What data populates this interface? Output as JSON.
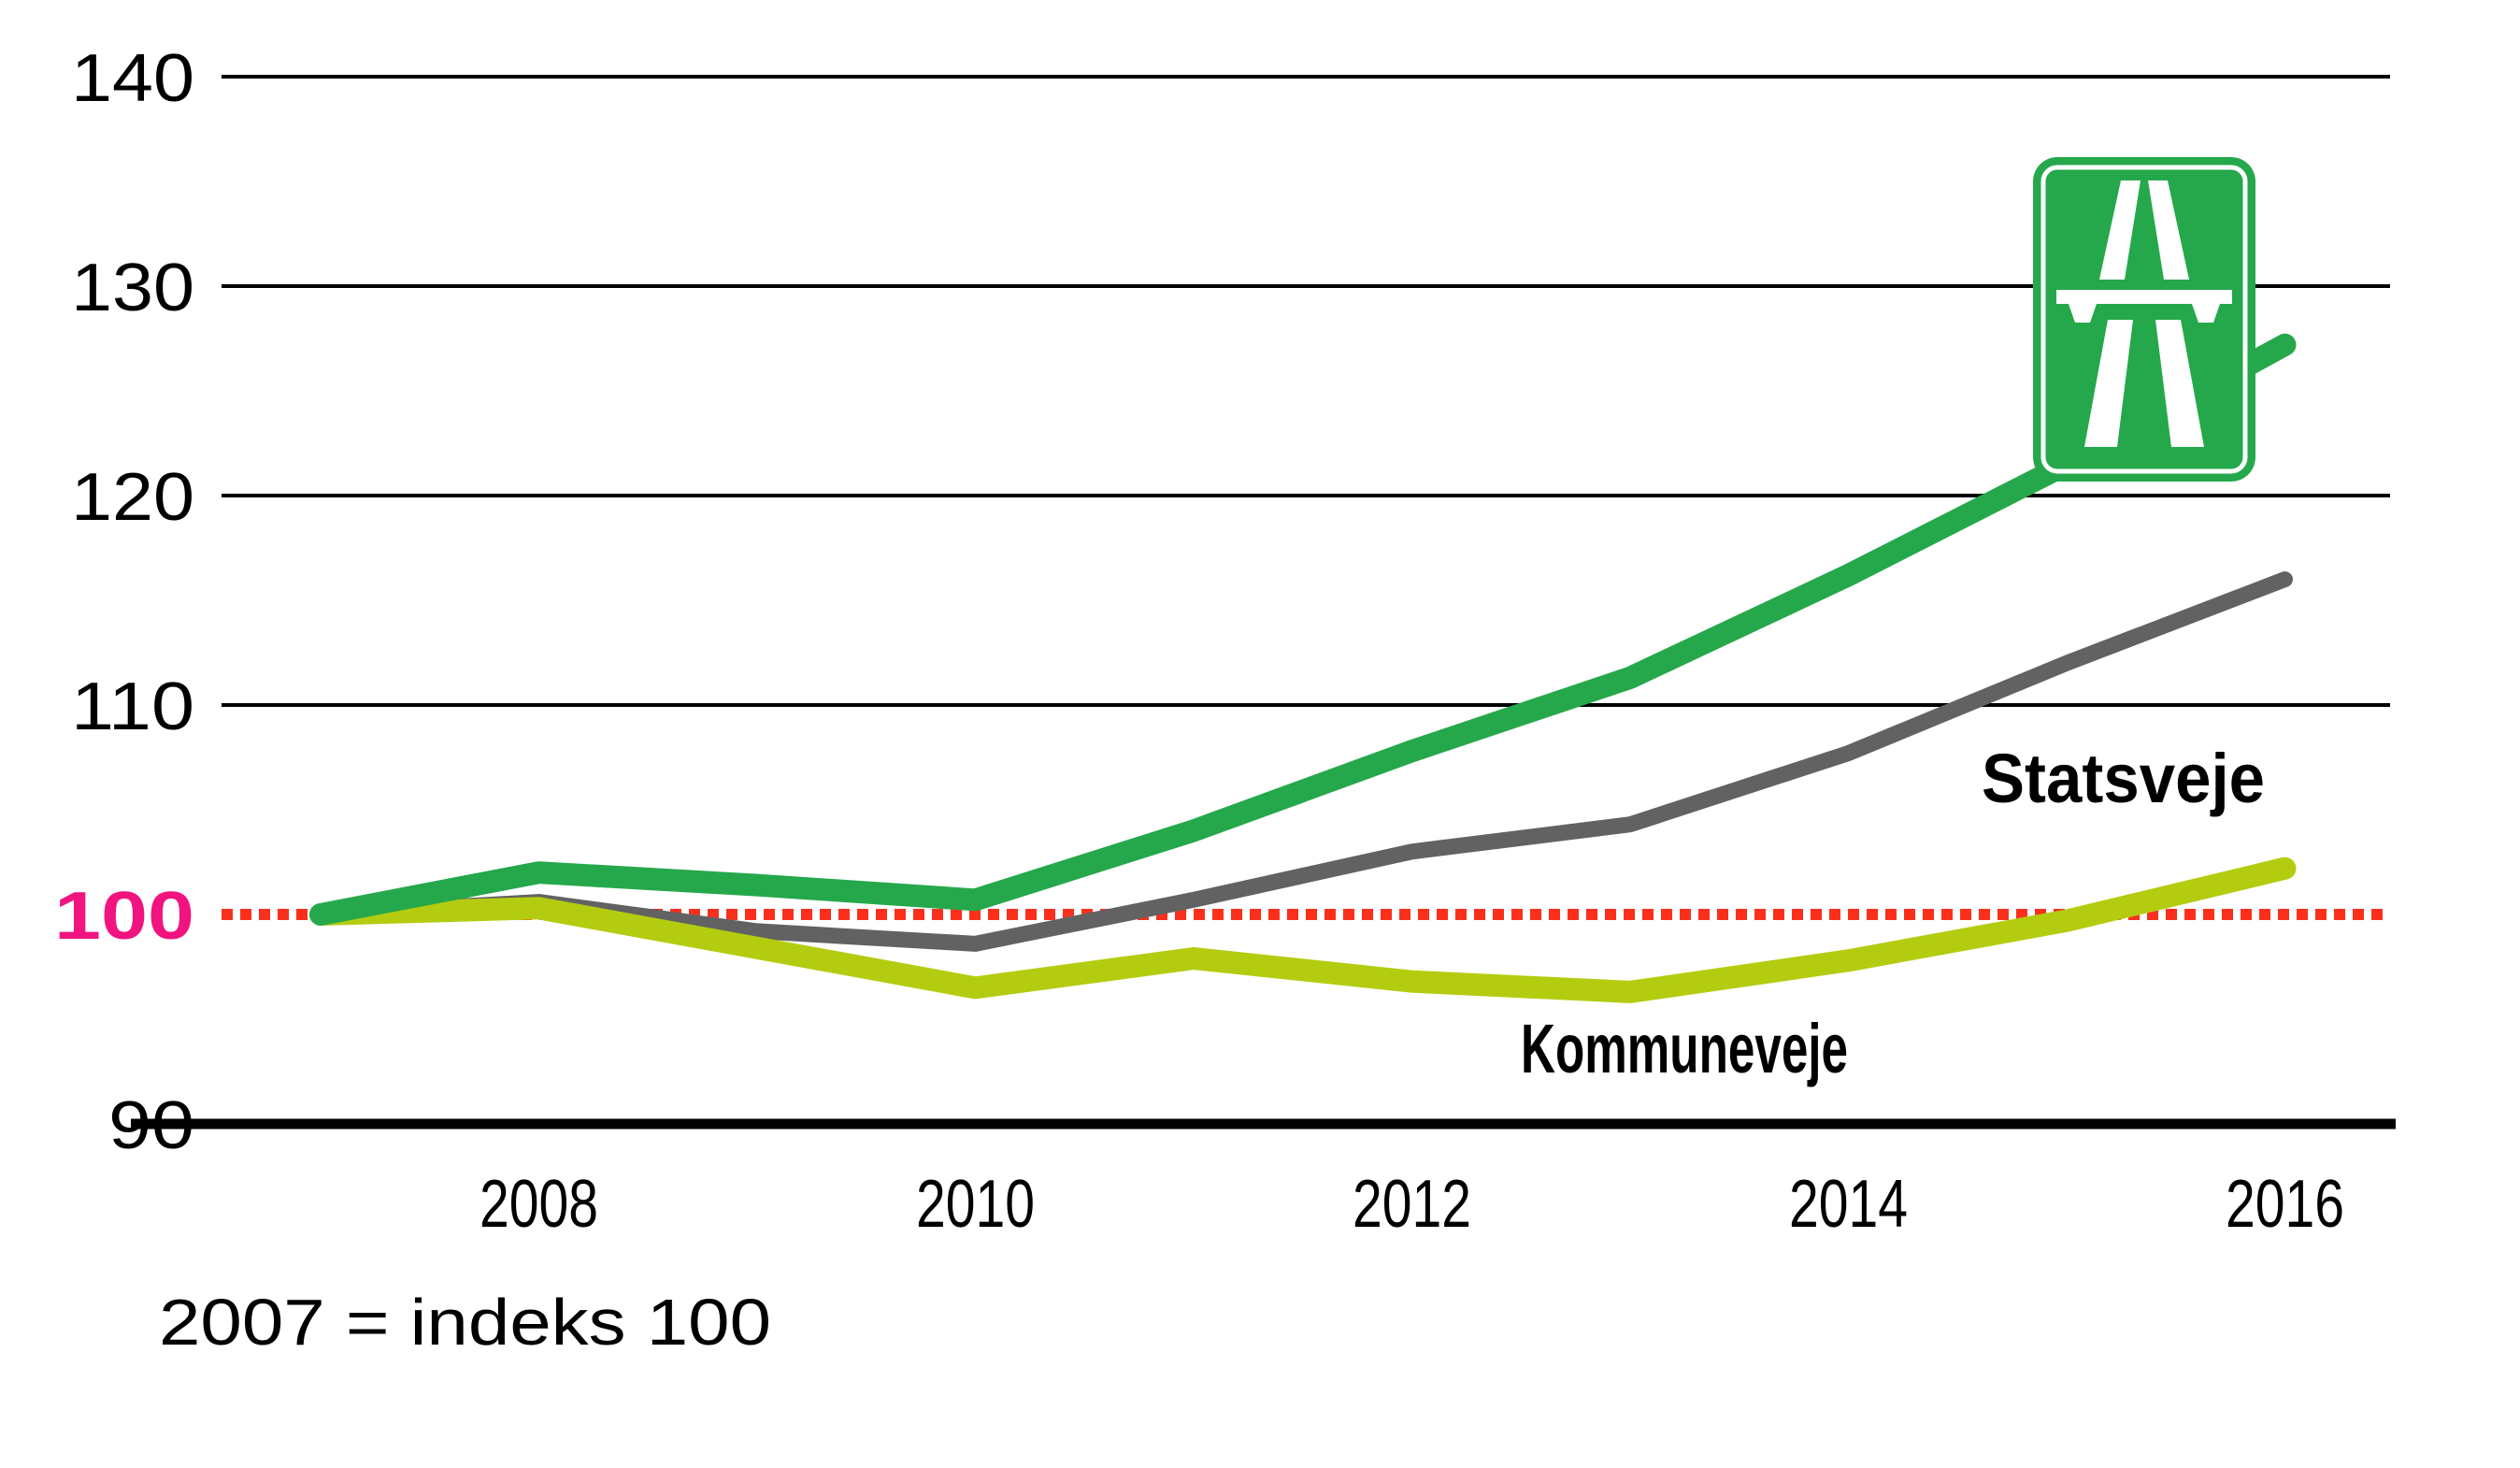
{
  "colors": {
    "background": "#FFFFFF",
    "axis_black": "#000000",
    "line_green": "#25A84B",
    "line_gray": "#626262",
    "line_lime": "#B3CC0F",
    "reference_red": "#FA301C",
    "highlight_pink": "#F11380",
    "sign_green": "#25A84B",
    "sign_white": "#FFFFFF"
  },
  "chart_data": {
    "type": "line",
    "title": "",
    "xlabel": "",
    "ylabel": "",
    "x": [
      2007,
      2008,
      2009,
      2010,
      2011,
      2012,
      2013,
      2014,
      2015,
      2016
    ],
    "x_tick_labels": [
      "2008",
      "2010",
      "2012",
      "2014",
      "2016"
    ],
    "x_tick_years": [
      2008,
      2010,
      2012,
      2014,
      2016
    ],
    "y_ticks": [
      90,
      100,
      110,
      120,
      130,
      140
    ],
    "y_highlight_tick": 100,
    "ylim": [
      90,
      140
    ],
    "grid": "horizontal",
    "reference_line": {
      "value": 100,
      "style": "dotted"
    },
    "series": [
      {
        "id": "statsveje",
        "label": "Statsveje",
        "color_key": "line_gray",
        "values": [
          100,
          100.6,
          99.2,
          98.6,
          100.7,
          103,
          104.3,
          107.7,
          112,
          116
        ]
      },
      {
        "id": "kommuneveje",
        "label": "Kommuneveje",
        "color_key": "line_lime",
        "values": [
          100,
          100.3,
          98.4,
          96.5,
          97.9,
          96.8,
          96.3,
          97.8,
          99.7,
          102.2
        ]
      },
      {
        "id": "motorveje",
        "label": "",
        "icon": "motorway-sign-icon",
        "color_key": "line_green",
        "values": [
          100,
          102,
          101.4,
          100.7,
          104,
          107.8,
          111.3,
          116.2,
          121.5,
          127.2
        ]
      }
    ],
    "footnote": "2007 = indeks 100",
    "legend_position": "inline-annotations"
  }
}
